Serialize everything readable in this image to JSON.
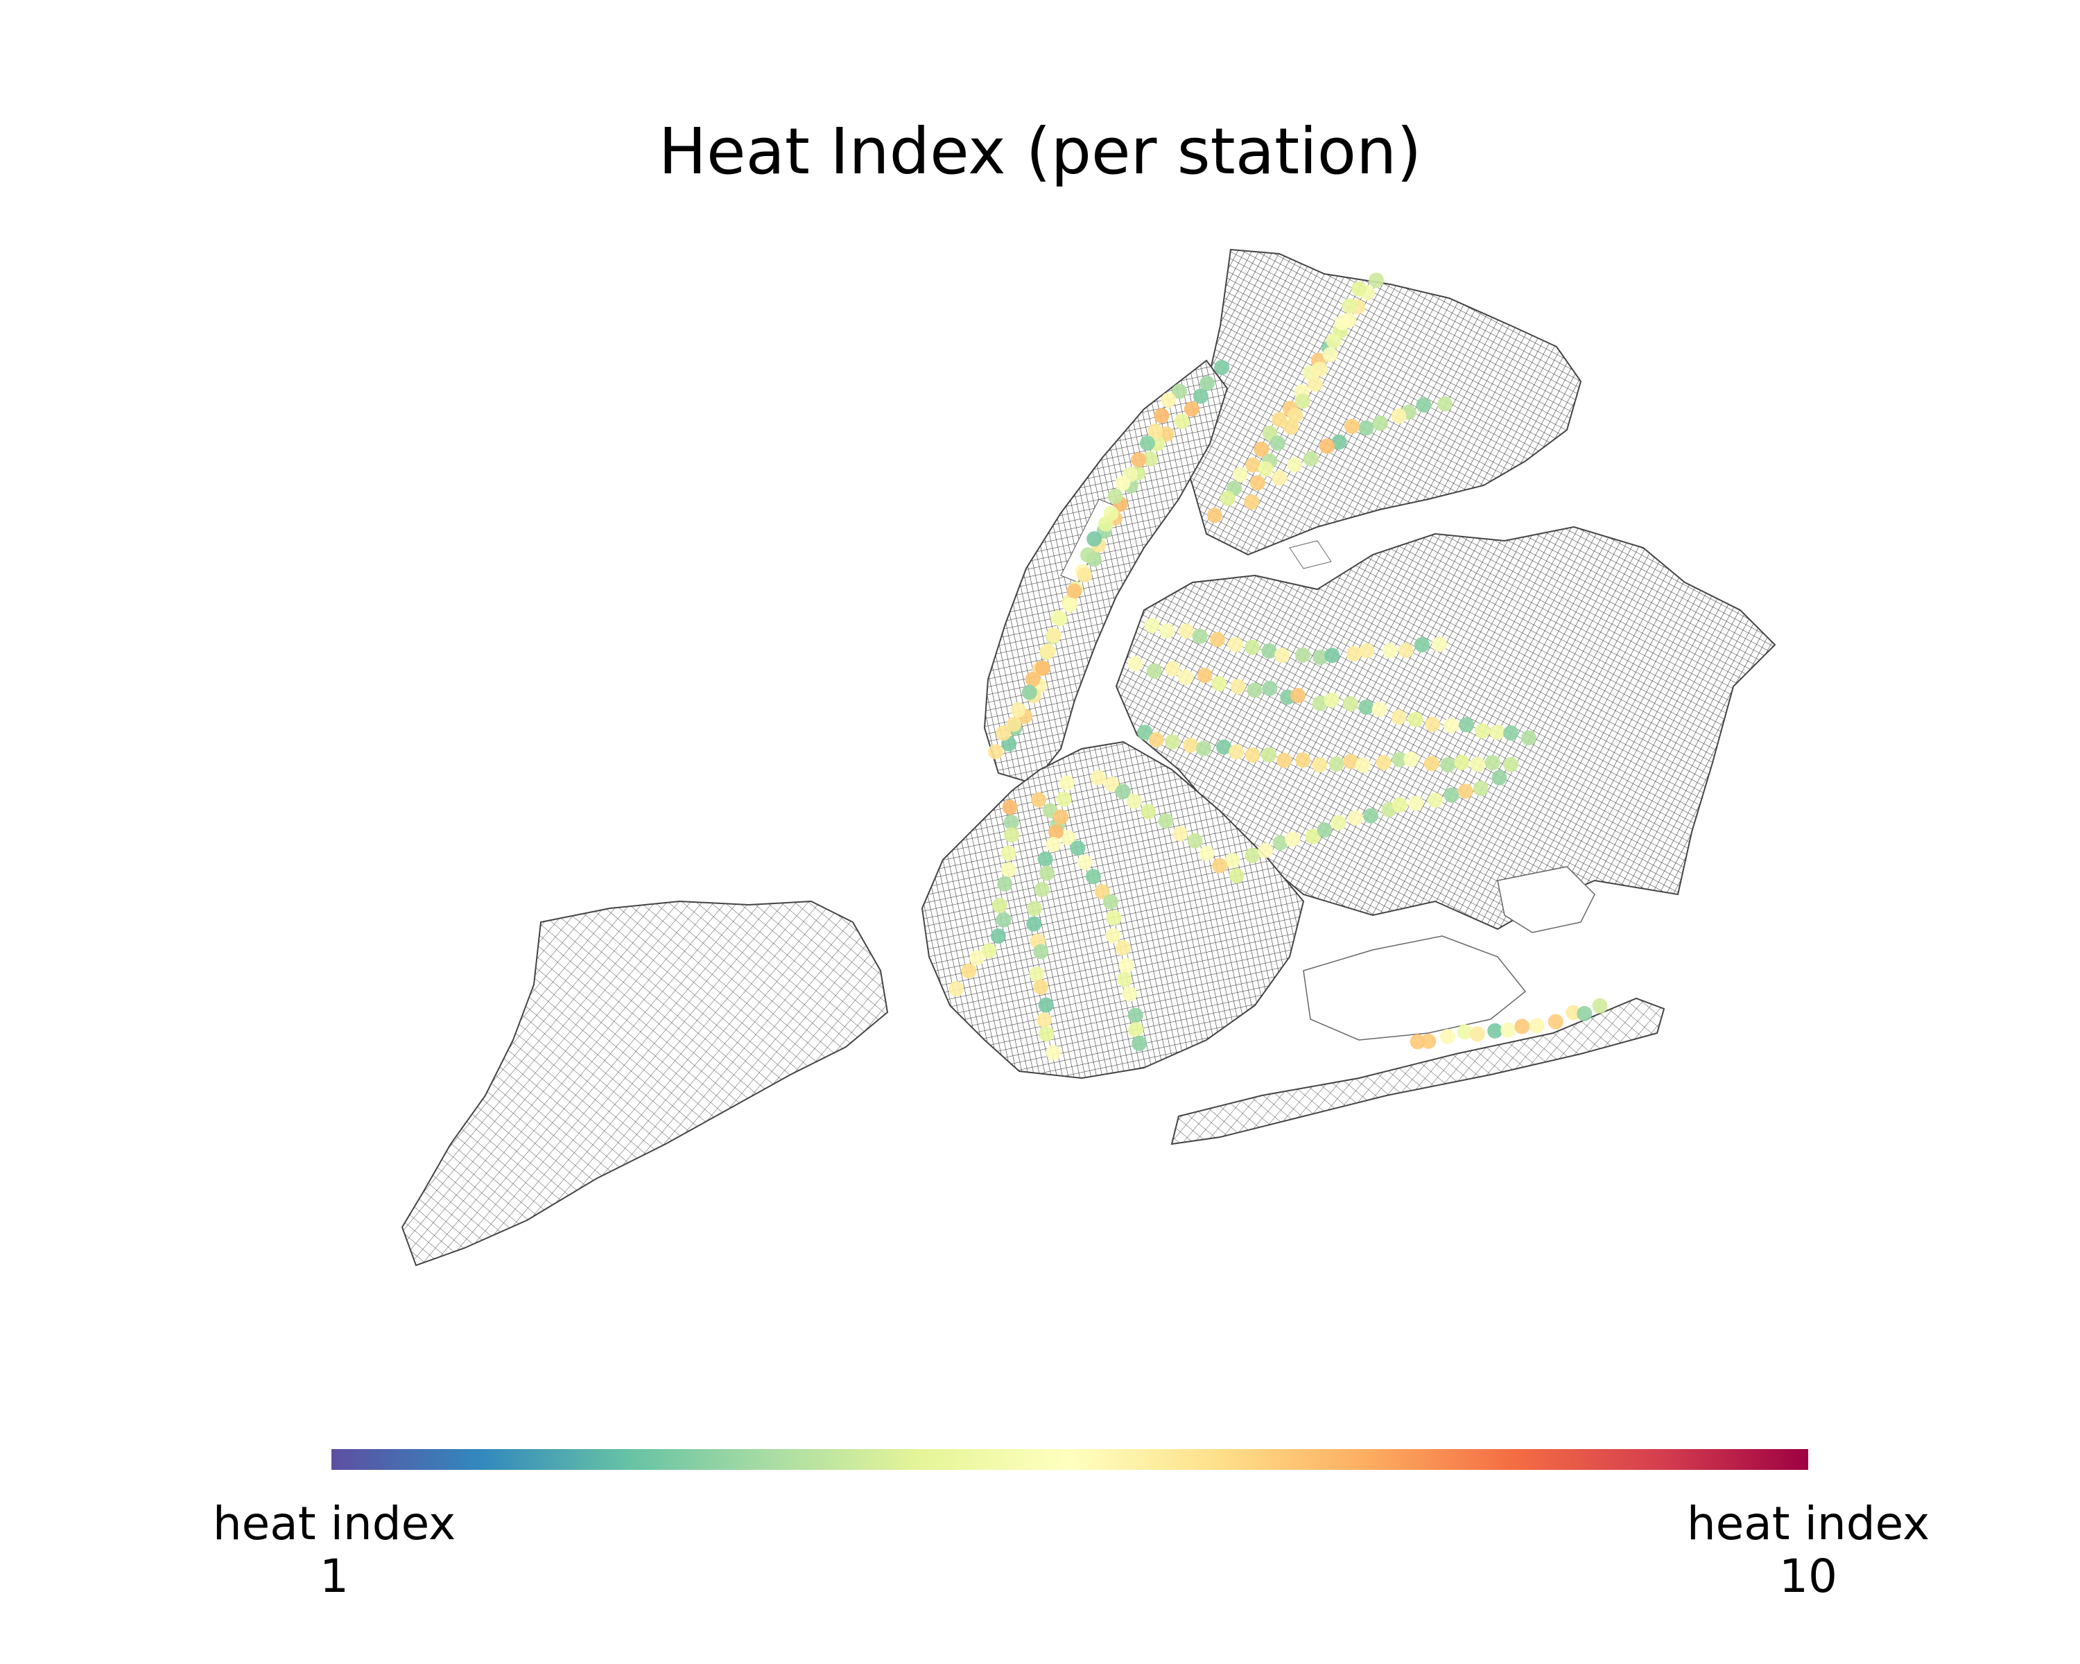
{
  "title": "Heat Index (per station)",
  "colorbar": {
    "min_label": "heat index",
    "min_value": "1",
    "max_label": "heat index",
    "max_value": "10",
    "colormap": "Spectral_r",
    "colors": [
      "#5e4fa2",
      "#3288bd",
      "#66c2a5",
      "#abdda4",
      "#e6f598",
      "#ffffbf",
      "#fee08b",
      "#fdae61",
      "#f46d43",
      "#d53e4f",
      "#9e0142"
    ]
  },
  "map": {
    "land_color": "#ffffff",
    "street_color": "#000000",
    "icon": "street-network-map"
  }
}
